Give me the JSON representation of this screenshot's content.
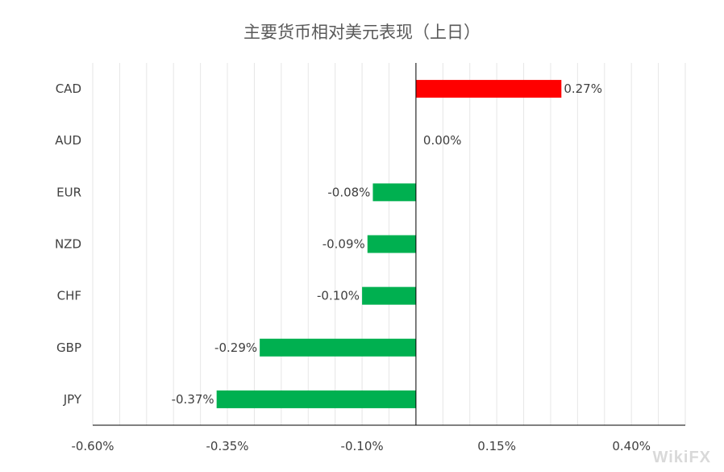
{
  "chart_data": {
    "type": "bar",
    "orientation": "horizontal",
    "title": "主要货币相对美元表现（上日）",
    "categories": [
      "CAD",
      "AUD",
      "EUR",
      "NZD",
      "CHF",
      "GBP",
      "JPY"
    ],
    "values": [
      0.27,
      0.0,
      -0.08,
      -0.09,
      -0.1,
      -0.29,
      -0.37
    ],
    "value_labels": [
      "0.27%",
      "0.00%",
      "-0.08%",
      "-0.09%",
      "-0.10%",
      "-0.29%",
      "-0.37%"
    ],
    "xlim": [
      -0.6,
      0.5
    ],
    "xticks": [
      -0.6,
      -0.35,
      -0.1,
      0.15,
      0.4
    ],
    "xtick_labels": [
      "-0.60%",
      "-0.35%",
      "-0.10%",
      "0.15%",
      "0.40%"
    ],
    "grid": true,
    "colors": {
      "positive": "#ff0000",
      "negative": "#00b050"
    }
  },
  "watermark": "WikiFX"
}
